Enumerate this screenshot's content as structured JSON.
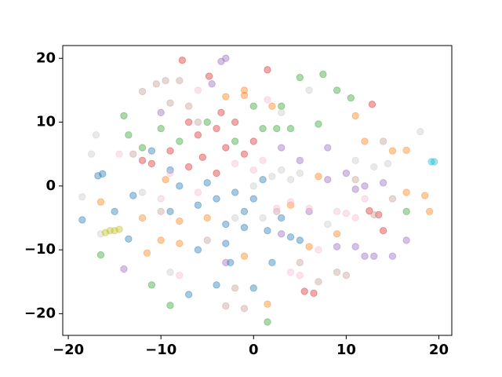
{
  "chart_data": {
    "type": "scatter",
    "xlim": [
      -20.6,
      21.4
    ],
    "ylim": [
      -23.4,
      22
    ],
    "xticks": [
      {
        "value": -20,
        "label": "−20"
      },
      {
        "value": -10,
        "label": "−10"
      },
      0,
      10,
      20
    ],
    "yticks": [
      {
        "value": -20,
        "label": "−20"
      },
      {
        "value": -10,
        "label": "−10"
      },
      0,
      10,
      20
    ],
    "opacity": 0.4,
    "series": [
      {
        "color": "#1f77b4",
        "x": [
          -18.5,
          -16.8,
          -16.3,
          -15,
          -13.5,
          -9,
          -8,
          -6,
          -5,
          -4,
          -3,
          -2,
          -1,
          0,
          1,
          1.5,
          2,
          -4,
          -2.5,
          3,
          4,
          5,
          -6,
          -7,
          0,
          -3,
          -11,
          -13,
          -9,
          -1
        ],
        "y": [
          -5.3,
          1.6,
          1.9,
          -4,
          -8.3,
          -4,
          0,
          -3,
          0.5,
          -2,
          -6,
          -1,
          -4,
          -2,
          1,
          -7,
          -12,
          -15.5,
          -12,
          -5,
          -8,
          -8.5,
          -10,
          -17,
          -16,
          -9,
          5.5,
          -1.5,
          2.5,
          -6.5
        ]
      },
      {
        "color": "#ff7f0e",
        "x": [
          -12,
          -11.5,
          -10,
          -9.5,
          -8,
          -16.5,
          -3,
          -1,
          -1,
          2,
          11,
          12,
          15,
          16.5,
          16.5,
          18.5,
          19,
          1.5,
          6,
          9,
          -5,
          -1,
          4,
          -8,
          7
        ],
        "y": [
          -5,
          -10.5,
          -8.5,
          1,
          -9,
          -2.5,
          14,
          15,
          14.2,
          12.5,
          11,
          7,
          5.5,
          5.6,
          -1,
          -1.5,
          -4,
          -18.5,
          -9.5,
          -7.5,
          -5,
          -11,
          -3,
          -5.5,
          1.5
        ]
      },
      {
        "color": "#2ca02c",
        "x": [
          -14,
          -13.5,
          -12,
          -10,
          -8,
          -5,
          -2,
          0,
          1,
          2.5,
          3,
          4,
          5,
          7,
          7.5,
          9,
          10.5,
          -9,
          -11,
          1.5,
          -16.5,
          16.5
        ],
        "y": [
          11,
          8,
          6,
          9,
          7,
          10,
          7,
          12.5,
          9,
          9,
          12.5,
          9,
          17,
          9.7,
          17.5,
          15,
          13.8,
          -18.7,
          -15.5,
          -21.3,
          -10.8,
          -4
        ]
      },
      {
        "color": "#d62728",
        "x": [
          -7.7,
          -4.8,
          -7,
          -6,
          -4,
          -3,
          -2,
          0,
          1.5,
          -5.5,
          -7,
          -11,
          -12,
          -4,
          12.5,
          13.5,
          14,
          5.5,
          6.5,
          -9,
          -3.5,
          -1,
          12.8
        ],
        "y": [
          19.7,
          17.2,
          10,
          8,
          9,
          6,
          10,
          7,
          18.2,
          4.5,
          3,
          3.5,
          4,
          2,
          -3.9,
          -4.5,
          -7,
          -16.5,
          -16.8,
          5.5,
          11.5,
          5,
          12.8
        ]
      },
      {
        "color": "#9467bd",
        "x": [
          -3.5,
          -3,
          -4.5,
          -10,
          3,
          5,
          8,
          8,
          10,
          12,
          14,
          6,
          9,
          11,
          12,
          13,
          15,
          16.5,
          -14,
          -3,
          3,
          11
        ],
        "y": [
          19.5,
          20,
          16,
          11.5,
          6,
          4,
          6,
          1,
          2,
          0,
          0.5,
          -4,
          -9.5,
          -9.5,
          -11,
          -11,
          -11,
          -8.5,
          -13,
          -12,
          -7.5,
          -0.5
        ]
      },
      {
        "color": "#c49c94",
        "x": [
          -12,
          -10.5,
          -9.5,
          -8,
          -7,
          -9,
          -6,
          11,
          13,
          -2,
          -1,
          -3,
          5,
          7,
          9,
          10,
          -13,
          -10,
          2.5,
          -5,
          14,
          15
        ],
        "y": [
          14.8,
          16,
          16.5,
          16.5,
          12.5,
          13,
          10,
          1,
          -4.5,
          -16,
          -19.2,
          -18.8,
          -12,
          -15,
          -13.5,
          -14,
          5,
          -4,
          -4,
          -8.5,
          7,
          -2
        ]
      },
      {
        "color": "#f7b6d2",
        "x": [
          -14.5,
          -9,
          -10,
          -6,
          -2,
          0,
          1,
          1.5,
          2.5,
          4,
          6,
          9,
          10,
          11,
          5,
          4,
          -8,
          12,
          -6,
          7
        ],
        "y": [
          5,
          2,
          -2,
          -1,
          3.5,
          2.5,
          4,
          13.5,
          -3.5,
          -2.5,
          -3.5,
          -4,
          -4.3,
          -5,
          -14,
          -13.5,
          -14,
          -2,
          15,
          -10
        ]
      },
      {
        "color": "#c7c7c7",
        "x": [
          -17,
          -17.5,
          -18.5,
          -16.5,
          2,
          3,
          4,
          5,
          0,
          -2,
          1,
          3,
          6,
          11,
          13,
          14.5,
          18,
          -9,
          -12,
          8
        ],
        "y": [
          8,
          5,
          -1.7,
          -7.5,
          1.5,
          2.5,
          1,
          2,
          0,
          -5,
          -5,
          11.5,
          15,
          4,
          3,
          3.5,
          8.5,
          -13.5,
          -1,
          -6
        ]
      },
      {
        "color": "#bcbd22",
        "x": [
          -15,
          -15.5,
          -16,
          -14.5
        ],
        "y": [
          -7,
          -7,
          -7.3,
          -6.8
        ]
      },
      {
        "color": "#17becf",
        "x": [
          19.2,
          19.5
        ],
        "y": [
          3.8,
          3.8
        ]
      }
    ]
  }
}
